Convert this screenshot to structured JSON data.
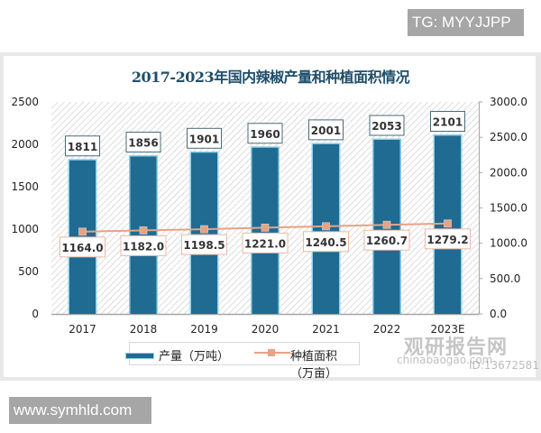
{
  "overlays": {
    "top_tag": "TG: MYYJJPP",
    "bottom_tag": "www.symhld.com",
    "watermark_cn": "观研报告网",
    "watermark_en": "chinabaogao.com",
    "watermark_id": "ID:13672581"
  },
  "colors": {
    "bar": "#1f6b92",
    "bar_edge": "#8fd0ea",
    "line": "#e8a283",
    "marker": "#e8a283",
    "title": "#1f4e6b",
    "hatch": "#d6d6d6"
  },
  "chart_data": {
    "type": "bar",
    "title": "2017-2023年国内辣椒产量和种植面积情况",
    "categories": [
      "2017",
      "2018",
      "2019",
      "2020",
      "2021",
      "2022",
      "2023E"
    ],
    "series": [
      {
        "name": "产量（万吨）",
        "type": "bar",
        "axis": "left",
        "values": [
          1811,
          1856,
          1901,
          1960,
          2001,
          2053,
          2101
        ],
        "labels": [
          "1811",
          "1856",
          "1901",
          "1960",
          "2001",
          "2053",
          "2101"
        ]
      },
      {
        "name": "种植面积（万亩）",
        "type": "line",
        "axis": "right",
        "values": [
          1164.0,
          1182.0,
          1198.5,
          1221.0,
          1240.5,
          1260.7,
          1279.2
        ],
        "labels": [
          "1164.0",
          "1182.0",
          "1198.5",
          "1221.0",
          "1240.5",
          "1260.7",
          "1279.2"
        ]
      }
    ],
    "left_axis": {
      "ylim": [
        0,
        2500
      ],
      "ticks": [
        "0",
        "500",
        "1000",
        "1500",
        "2000",
        "2500"
      ]
    },
    "right_axis": {
      "ylim": [
        0,
        3000
      ],
      "ticks": [
        "0.0",
        "500.0",
        "1000.0",
        "1500.0",
        "2000.0",
        "2500.0",
        "3000.0"
      ]
    },
    "xlabel": "",
    "ylabel": "",
    "grid": false,
    "legend_position": "bottom"
  }
}
